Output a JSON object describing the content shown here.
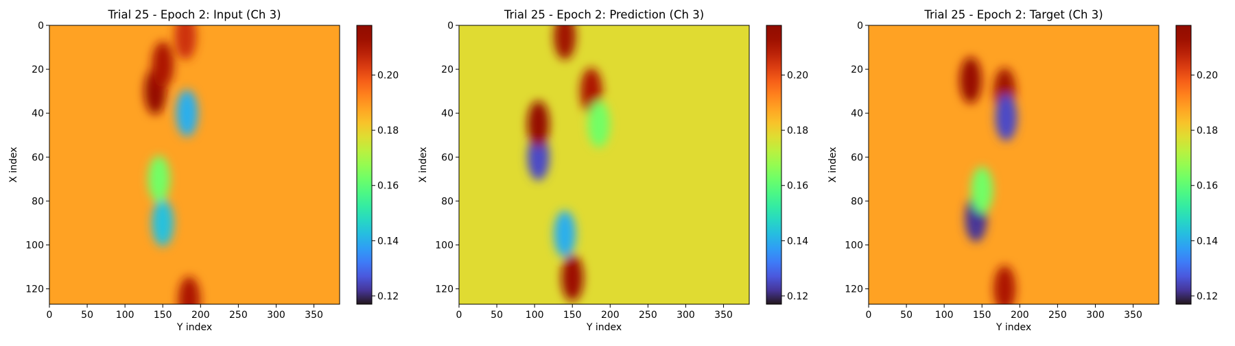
{
  "chart_data": [
    {
      "type": "heatmap",
      "title": "Trial 25 - Epoch 2: Input (Ch 3)",
      "xlabel": "Y index",
      "ylabel": "X index",
      "xlim": [
        0,
        384
      ],
      "ylim": [
        127,
        0
      ],
      "xticks": [
        0,
        50,
        100,
        150,
        200,
        250,
        300,
        350
      ],
      "yticks": [
        0,
        20,
        40,
        60,
        80,
        100,
        120
      ],
      "colormap": "turbo",
      "colorbar": {
        "range": [
          0.117,
          0.218
        ],
        "ticks": [
          0.12,
          0.14,
          0.16,
          0.18,
          0.2
        ],
        "tick_labels": [
          "0.12",
          "0.14",
          "0.16",
          "0.18",
          "0.20"
        ]
      },
      "background_value": 0.188,
      "features": [
        {
          "y": 140,
          "x": 30,
          "value": 0.215
        },
        {
          "y": 150,
          "x": 18,
          "value": 0.21
        },
        {
          "y": 180,
          "x": 5,
          "value": 0.205
        },
        {
          "y": 182,
          "x": 40,
          "value": 0.14
        },
        {
          "y": 150,
          "x": 90,
          "value": 0.143
        },
        {
          "y": 145,
          "x": 70,
          "value": 0.163
        },
        {
          "y": 185,
          "x": 125,
          "value": 0.21
        }
      ]
    },
    {
      "type": "heatmap",
      "title": "Trial 25 - Epoch 2: Prediction (Ch 3)",
      "xlabel": "Y index",
      "ylabel": "X index",
      "xlim": [
        0,
        384
      ],
      "ylim": [
        127,
        0
      ],
      "xticks": [
        0,
        50,
        100,
        150,
        200,
        250,
        300,
        350
      ],
      "yticks": [
        0,
        20,
        40,
        60,
        80,
        100,
        120
      ],
      "colormap": "turbo",
      "colorbar": {
        "range": [
          0.117,
          0.218
        ],
        "ticks": [
          0.12,
          0.14,
          0.16,
          0.18,
          0.2
        ],
        "tick_labels": [
          "0.12",
          "0.14",
          "0.16",
          "0.18",
          "0.20"
        ]
      },
      "background_value": 0.178,
      "features": [
        {
          "y": 105,
          "x": 60,
          "value": 0.125
        },
        {
          "y": 105,
          "x": 45,
          "value": 0.215
        },
        {
          "y": 140,
          "x": 95,
          "value": 0.14
        },
        {
          "y": 150,
          "x": 115,
          "value": 0.213
        },
        {
          "y": 175,
          "x": 30,
          "value": 0.21
        },
        {
          "y": 140,
          "x": 5,
          "value": 0.212
        },
        {
          "y": 185,
          "x": 45,
          "value": 0.163
        }
      ]
    },
    {
      "type": "heatmap",
      "title": "Trial 25 - Epoch 2: Target (Ch 3)",
      "xlabel": "Y index",
      "ylabel": "X index",
      "xlim": [
        0,
        384
      ],
      "ylim": [
        127,
        0
      ],
      "xticks": [
        0,
        50,
        100,
        150,
        200,
        250,
        300,
        350
      ],
      "yticks": [
        0,
        20,
        40,
        60,
        80,
        100,
        120
      ],
      "colormap": "turbo",
      "colorbar": {
        "range": [
          0.117,
          0.218
        ],
        "ticks": [
          0.12,
          0.14,
          0.16,
          0.18,
          0.2
        ],
        "tick_labels": [
          "0.12",
          "0.14",
          "0.16",
          "0.18",
          "0.20"
        ]
      },
      "background_value": 0.188,
      "features": [
        {
          "y": 135,
          "x": 25,
          "value": 0.214
        },
        {
          "y": 180,
          "x": 30,
          "value": 0.212
        },
        {
          "y": 182,
          "x": 42,
          "value": 0.125
        },
        {
          "y": 142,
          "x": 88,
          "value": 0.122
        },
        {
          "y": 150,
          "x": 75,
          "value": 0.163
        },
        {
          "y": 180,
          "x": 120,
          "value": 0.21
        }
      ]
    }
  ]
}
